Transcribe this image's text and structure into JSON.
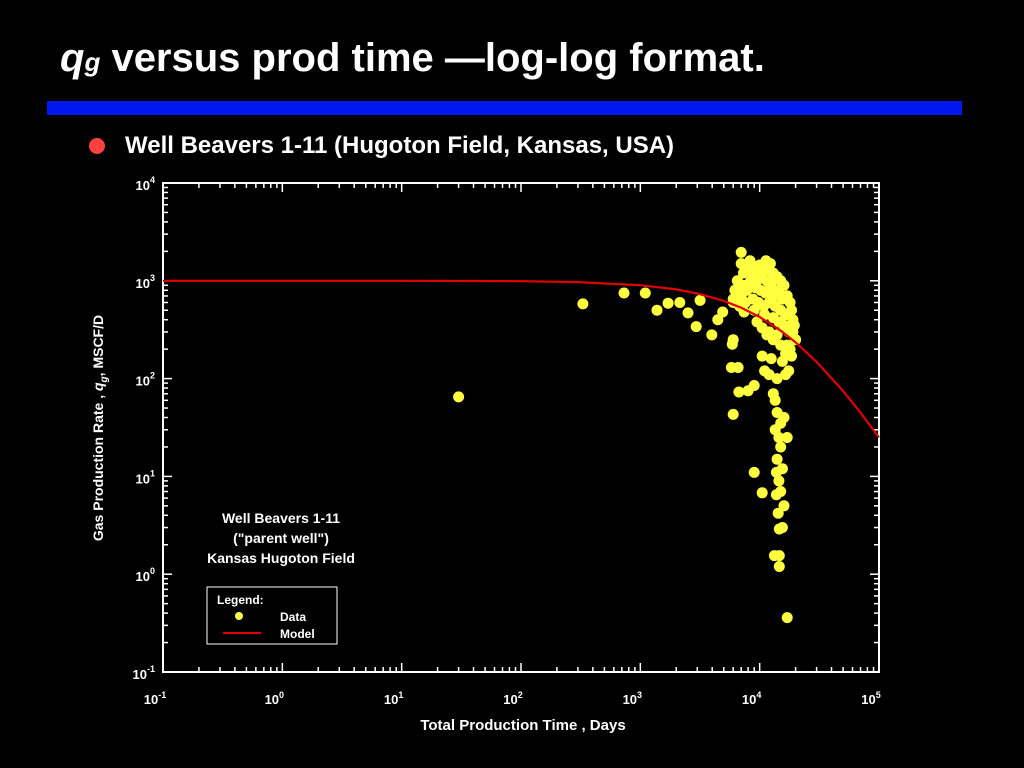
{
  "slide": {
    "title_q": "q",
    "title_g": "g",
    "title_rest": " versus prod time —log-log format.",
    "bullet": "Well Beavers 1-11 (Hugoton Field, Kansas, USA)"
  },
  "colors": {
    "data": "#ffff40",
    "model": "#e00000",
    "bar": "#0018f0",
    "bullet": "#ff4040"
  },
  "chart_data": {
    "type": "scatter",
    "xscale": "log",
    "yscale": "log",
    "xlim": [
      0.1,
      100000
    ],
    "ylim": [
      0.1,
      10000
    ],
    "xlabel": "Total Production Time , Days",
    "ylabel_pre": "Gas Production Rate , ",
    "ylabel_q": "q",
    "ylabel_g": "g",
    "ylabel_post": ", MSCF/D",
    "xticks": [
      {
        "base": "10",
        "exp": "-1"
      },
      {
        "base": "10",
        "exp": "0"
      },
      {
        "base": "10",
        "exp": "1"
      },
      {
        "base": "10",
        "exp": "2"
      },
      {
        "base": "10",
        "exp": "3"
      },
      {
        "base": "10",
        "exp": "4"
      },
      {
        "base": "10",
        "exp": "5"
      }
    ],
    "yticks": [
      {
        "base": "10",
        "exp": "-1"
      },
      {
        "base": "10",
        "exp": "0"
      },
      {
        "base": "10",
        "exp": "1"
      },
      {
        "base": "10",
        "exp": "2"
      },
      {
        "base": "10",
        "exp": "3"
      },
      {
        "base": "10",
        "exp": "4"
      }
    ],
    "annotation": [
      "Well Beavers 1-11",
      "(\"parent well\")",
      "Kansas Hugoton Field"
    ],
    "legend": {
      "title": "Legend:",
      "data": "Data",
      "model": "Model",
      "placement": "bottom-left"
    },
    "series": [
      {
        "name": "Data",
        "type": "scatter",
        "points": [
          [
            30,
            65
          ],
          [
            330,
            580
          ],
          [
            730,
            750
          ],
          [
            1100,
            750
          ],
          [
            1380,
            500
          ],
          [
            1710,
            590
          ],
          [
            2140,
            600
          ],
          [
            2510,
            470
          ],
          [
            2940,
            340
          ],
          [
            3170,
            630
          ],
          [
            3970,
            280
          ],
          [
            4460,
            400
          ],
          [
            4900,
            480
          ],
          [
            6000,
            600
          ],
          [
            6000,
            250
          ],
          [
            5900,
            225
          ],
          [
            5800,
            130
          ],
          [
            6600,
            130
          ],
          [
            6700,
            73
          ],
          [
            6000,
            43
          ],
          [
            9000,
            11
          ],
          [
            10500,
            6.8
          ],
          [
            13800,
            11
          ],
          [
            13800,
            6.5
          ],
          [
            14300,
            4.2
          ],
          [
            14600,
            2.9
          ],
          [
            13300,
            1.55
          ],
          [
            14600,
            1.55
          ],
          [
            14600,
            1.2
          ],
          [
            17000,
            0.36
          ],
          [
            17000,
            25
          ],
          [
            7000,
            1950
          ],
          [
            7000,
            1500
          ],
          [
            7500,
            1400
          ],
          [
            8000,
            1300
          ],
          [
            9000,
            1400
          ],
          [
            10000,
            1450
          ],
          [
            11000,
            1350
          ],
          [
            12000,
            1300
          ],
          [
            13000,
            1200
          ],
          [
            8500,
            1100
          ],
          [
            9500,
            1000
          ],
          [
            10500,
            1100
          ],
          [
            11500,
            1000
          ],
          [
            12500,
            950
          ],
          [
            14000,
            1100
          ],
          [
            15000,
            1000
          ],
          [
            16000,
            900
          ],
          [
            7200,
            900
          ],
          [
            7800,
            800
          ],
          [
            8200,
            950
          ],
          [
            9200,
            850
          ],
          [
            10200,
            800
          ],
          [
            11200,
            750
          ],
          [
            12200,
            850
          ],
          [
            13200,
            700
          ],
          [
            14500,
            800
          ],
          [
            15500,
            650
          ],
          [
            17000,
            700
          ],
          [
            18000,
            600
          ],
          [
            7000,
            700
          ],
          [
            7600,
            600
          ],
          [
            8800,
            650
          ],
          [
            9800,
            600
          ],
          [
            10800,
            550
          ],
          [
            12000,
            600
          ],
          [
            13500,
            550
          ],
          [
            15000,
            500
          ],
          [
            16500,
            450
          ],
          [
            18500,
            500
          ],
          [
            19000,
            400
          ],
          [
            6800,
            550
          ],
          [
            7400,
            480
          ],
          [
            9000,
            500
          ],
          [
            11000,
            450
          ],
          [
            13000,
            420
          ],
          [
            14500,
            380
          ],
          [
            16000,
            350
          ],
          [
            17500,
            300
          ],
          [
            19000,
            300
          ],
          [
            20000,
            250
          ],
          [
            12000,
            300
          ],
          [
            13000,
            250
          ],
          [
            14000,
            280
          ],
          [
            15000,
            220
          ],
          [
            17000,
            220
          ],
          [
            18000,
            200
          ],
          [
            9500,
            380
          ],
          [
            10500,
            330
          ],
          [
            11500,
            280
          ],
          [
            16500,
            180
          ],
          [
            19500,
            350
          ],
          [
            18500,
            170
          ],
          [
            7300,
            1200
          ],
          [
            8300,
            1600
          ],
          [
            9300,
            1250
          ],
          [
            10300,
            1200
          ],
          [
            11300,
            1600
          ],
          [
            12300,
            1500
          ],
          [
            6500,
            1000
          ],
          [
            6200,
            800
          ],
          [
            6000,
            650
          ],
          [
            10500,
            170
          ],
          [
            11000,
            120
          ],
          [
            8000,
            75
          ],
          [
            9000,
            85
          ],
          [
            12000,
            110
          ],
          [
            14000,
            100
          ],
          [
            13000,
            70
          ],
          [
            13500,
            60
          ],
          [
            14000,
            45
          ],
          [
            15000,
            35
          ],
          [
            13500,
            30
          ],
          [
            16000,
            40
          ],
          [
            14500,
            25
          ],
          [
            15000,
            20
          ],
          [
            14000,
            15
          ],
          [
            15500,
            12
          ],
          [
            14500,
            9
          ],
          [
            15000,
            7
          ],
          [
            16000,
            5
          ],
          [
            15500,
            3
          ],
          [
            16500,
            110
          ],
          [
            17500,
            120
          ],
          [
            12500,
            160
          ],
          [
            15500,
            150
          ]
        ]
      },
      {
        "name": "Model",
        "type": "line",
        "points": [
          [
            0.1,
            1000
          ],
          [
            1,
            1000
          ],
          [
            10,
            999
          ],
          [
            100,
            989.5
          ],
          [
            300,
            969
          ],
          [
            1000,
            901
          ],
          [
            2000,
            817
          ],
          [
            3000,
            741
          ],
          [
            5000,
            624
          ],
          [
            7000,
            531
          ],
          [
            10000,
            426
          ],
          [
            15000,
            309
          ],
          [
            20000,
            235
          ],
          [
            30000,
            148
          ],
          [
            50000,
            74.6
          ],
          [
            70000,
            44.8
          ],
          [
            100000,
            25
          ]
        ]
      }
    ]
  }
}
